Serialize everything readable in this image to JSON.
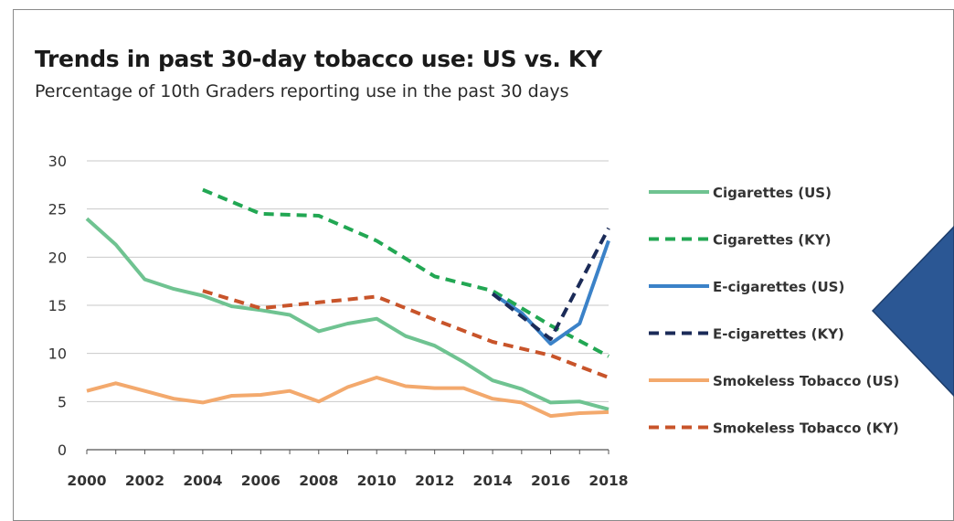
{
  "chart_data": {
    "type": "line",
    "title": "Trends in past 30-day tobacco use: US vs. KY",
    "subtitle": "Percentage of 10th Graders reporting use in the past 30 days",
    "xlabel": "",
    "ylabel": "",
    "x": [
      2000,
      2001,
      2002,
      2003,
      2004,
      2005,
      2006,
      2007,
      2008,
      2009,
      2010,
      2011,
      2012,
      2013,
      2014,
      2015,
      2016,
      2017,
      2018
    ],
    "x_ticks": [
      "2000",
      "2002",
      "2004",
      "2006",
      "2008",
      "2010",
      "2012",
      "2014",
      "2016",
      "2018"
    ],
    "y_ticks": [
      "30",
      "25",
      "20",
      "15",
      "10",
      "5",
      "0"
    ],
    "ylim": [
      0,
      30
    ],
    "grid": "horizontal",
    "legend_position": "right",
    "series": [
      {
        "name": "Cigarettes (US)",
        "color": "#6fc391",
        "dash": "solid",
        "points": [
          [
            2000,
            24
          ],
          [
            2001,
            21.3
          ],
          [
            2002,
            17.7
          ],
          [
            2003,
            16.7
          ],
          [
            2004,
            16
          ],
          [
            2005,
            14.9
          ],
          [
            2006,
            14.5
          ],
          [
            2007,
            14
          ],
          [
            2008,
            12.3
          ],
          [
            2009,
            13.1
          ],
          [
            2010,
            13.6
          ],
          [
            2011,
            11.8
          ],
          [
            2012,
            10.8
          ],
          [
            2013,
            9.1
          ],
          [
            2014,
            7.2
          ],
          [
            2015,
            6.3
          ],
          [
            2016,
            4.9
          ],
          [
            2017,
            5
          ],
          [
            2018,
            4.2
          ]
        ]
      },
      {
        "name": "Cigarettes (KY)",
        "color": "#22a753",
        "dash": "dashed",
        "points": [
          [
            2004,
            27
          ],
          [
            2006,
            24.5
          ],
          [
            2008,
            24.3
          ],
          [
            2010,
            21.7
          ],
          [
            2012,
            18
          ],
          [
            2014,
            16.5
          ],
          [
            2016,
            12.9
          ],
          [
            2018,
            9.7
          ]
        ]
      },
      {
        "name": "E-cigarettes (US)",
        "color": "#3b82c8",
        "dash": "solid",
        "points": [
          [
            2014,
            16.2
          ],
          [
            2015,
            14.2
          ],
          [
            2016,
            11
          ],
          [
            2017,
            13.1
          ],
          [
            2018,
            21.7
          ]
        ]
      },
      {
        "name": "E-cigarettes (KY)",
        "color": "#1b2b58",
        "dash": "dashed",
        "points": [
          [
            2014,
            16.2
          ],
          [
            2016,
            11.5
          ],
          [
            2018,
            23
          ]
        ]
      },
      {
        "name": "Smokeless Tobacco (US)",
        "color": "#f3a96d",
        "dash": "solid",
        "points": [
          [
            2000,
            6.1
          ],
          [
            2001,
            6.9
          ],
          [
            2002,
            6.1
          ],
          [
            2003,
            5.3
          ],
          [
            2004,
            4.9
          ],
          [
            2005,
            5.6
          ],
          [
            2006,
            5.7
          ],
          [
            2007,
            6.1
          ],
          [
            2008,
            5
          ],
          [
            2009,
            6.5
          ],
          [
            2010,
            7.5
          ],
          [
            2011,
            6.6
          ],
          [
            2012,
            6.4
          ],
          [
            2013,
            6.4
          ],
          [
            2014,
            5.3
          ],
          [
            2015,
            4.9
          ],
          [
            2016,
            3.5
          ],
          [
            2017,
            3.8
          ],
          [
            2018,
            3.9
          ]
        ]
      },
      {
        "name": "Smokeless Tobacco (KY)",
        "color": "#c8542a",
        "dash": "dashed",
        "points": [
          [
            2004,
            16.5
          ],
          [
            2006,
            14.7
          ],
          [
            2008,
            15.3
          ],
          [
            2010,
            15.9
          ],
          [
            2012,
            13.5
          ],
          [
            2014,
            11.2
          ],
          [
            2016,
            9.8
          ],
          [
            2018,
            7.5
          ]
        ]
      }
    ]
  },
  "decoration": {
    "arrow_color": "#2b5794",
    "arrow_border": "#1d3d6b"
  }
}
